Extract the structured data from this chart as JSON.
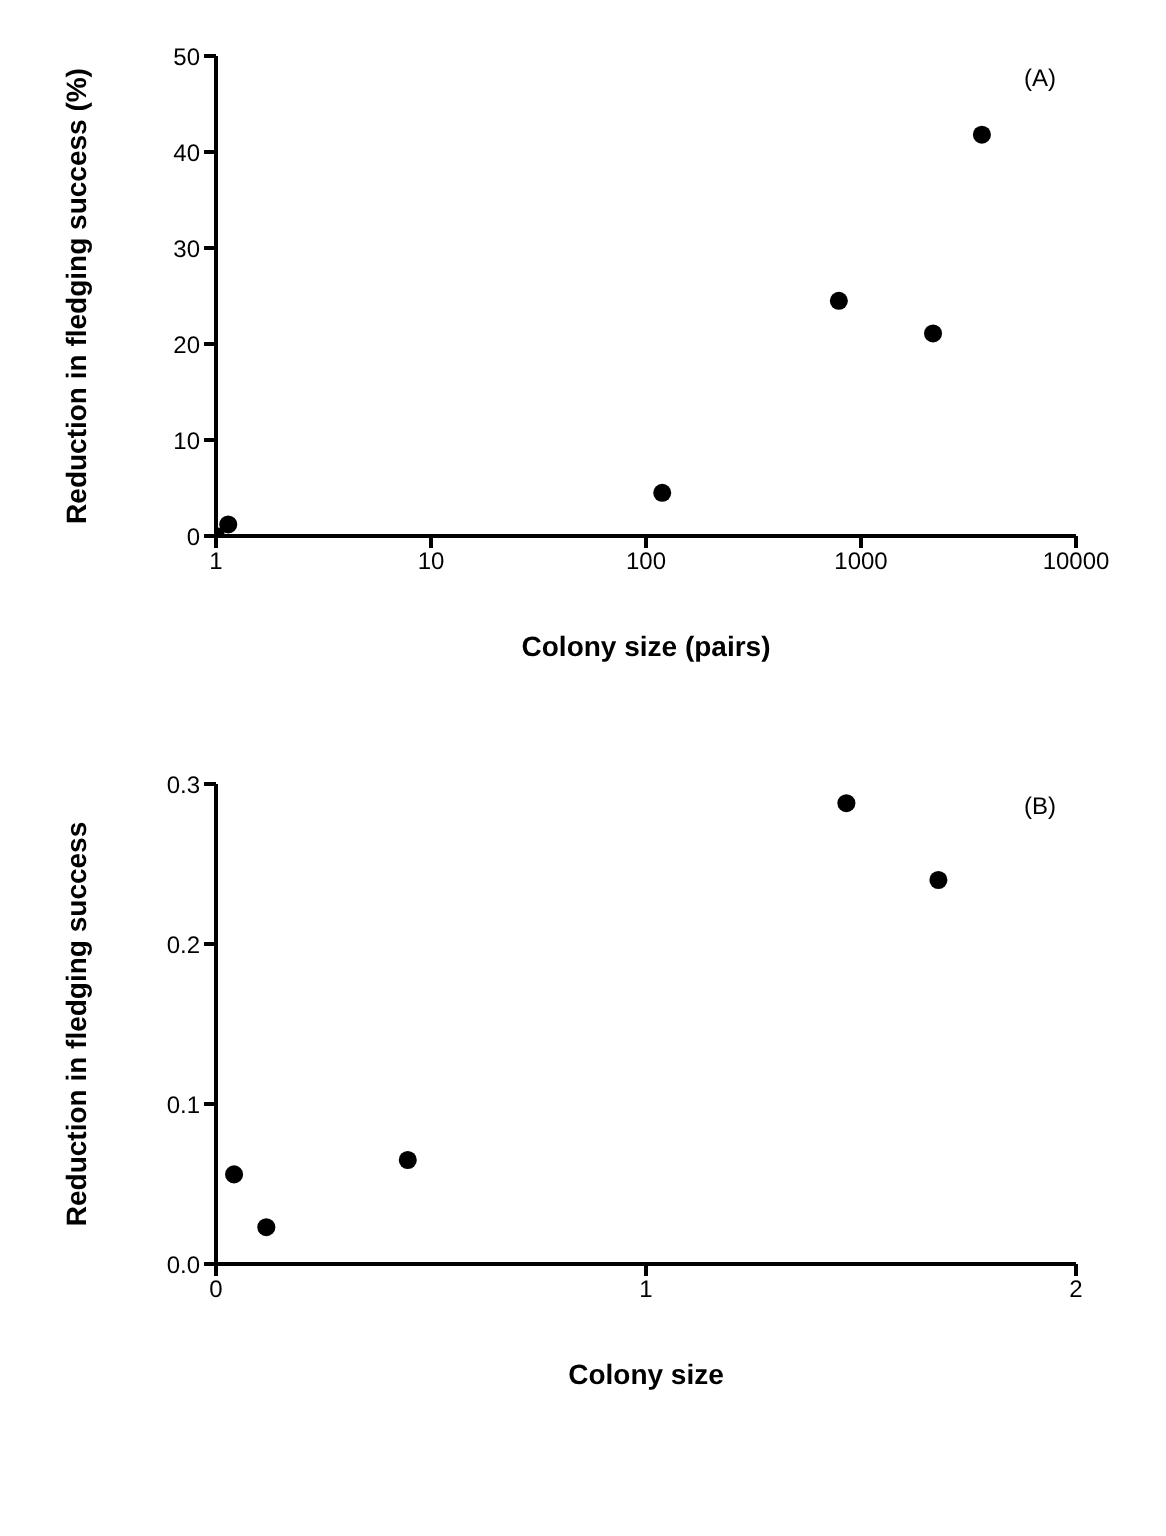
{
  "chart_data": [
    {
      "type": "scatter",
      "xlabel": "Colony size (pairs)",
      "ylabel": "Reduction in fledging success (%)",
      "annotations": [
        "(A)"
      ],
      "log": "x",
      "xlim": [
        1,
        10000
      ],
      "xticks": [
        1,
        10,
        100,
        1000,
        10000
      ],
      "ylim": [
        0,
        50
      ],
      "yticks": [
        0,
        10,
        20,
        30,
        40,
        50
      ],
      "marker": "circle",
      "series": [
        {
          "color": "#000000",
          "x": [
            1,
            1.14,
            119,
            789,
            2163,
            3650
          ],
          "values": [
            0,
            1.2,
            4.5,
            24.5,
            21.1,
            41.8
          ]
        }
      ]
    },
    {
      "type": "scatter",
      "xlabel": "Colony size",
      "ylabel": "Reduction in fledging success",
      "annotations": [
        "(B)"
      ],
      "xlim": [
        0,
        2
      ],
      "xticks": [
        0,
        1,
        2
      ],
      "ylim": [
        0,
        0.3
      ],
      "yticks": [
        {
          "value": 0,
          "label": "0.0"
        },
        0.1,
        0.2,
        0.3
      ],
      "marker": "circle",
      "series": [
        {
          "color": "#000000",
          "x": [
            0.042,
            0.117,
            0.446,
            1.466,
            1.68
          ],
          "values": [
            0.056,
            0.023,
            0.065,
            0.288,
            0.24
          ]
        }
      ]
    }
  ]
}
